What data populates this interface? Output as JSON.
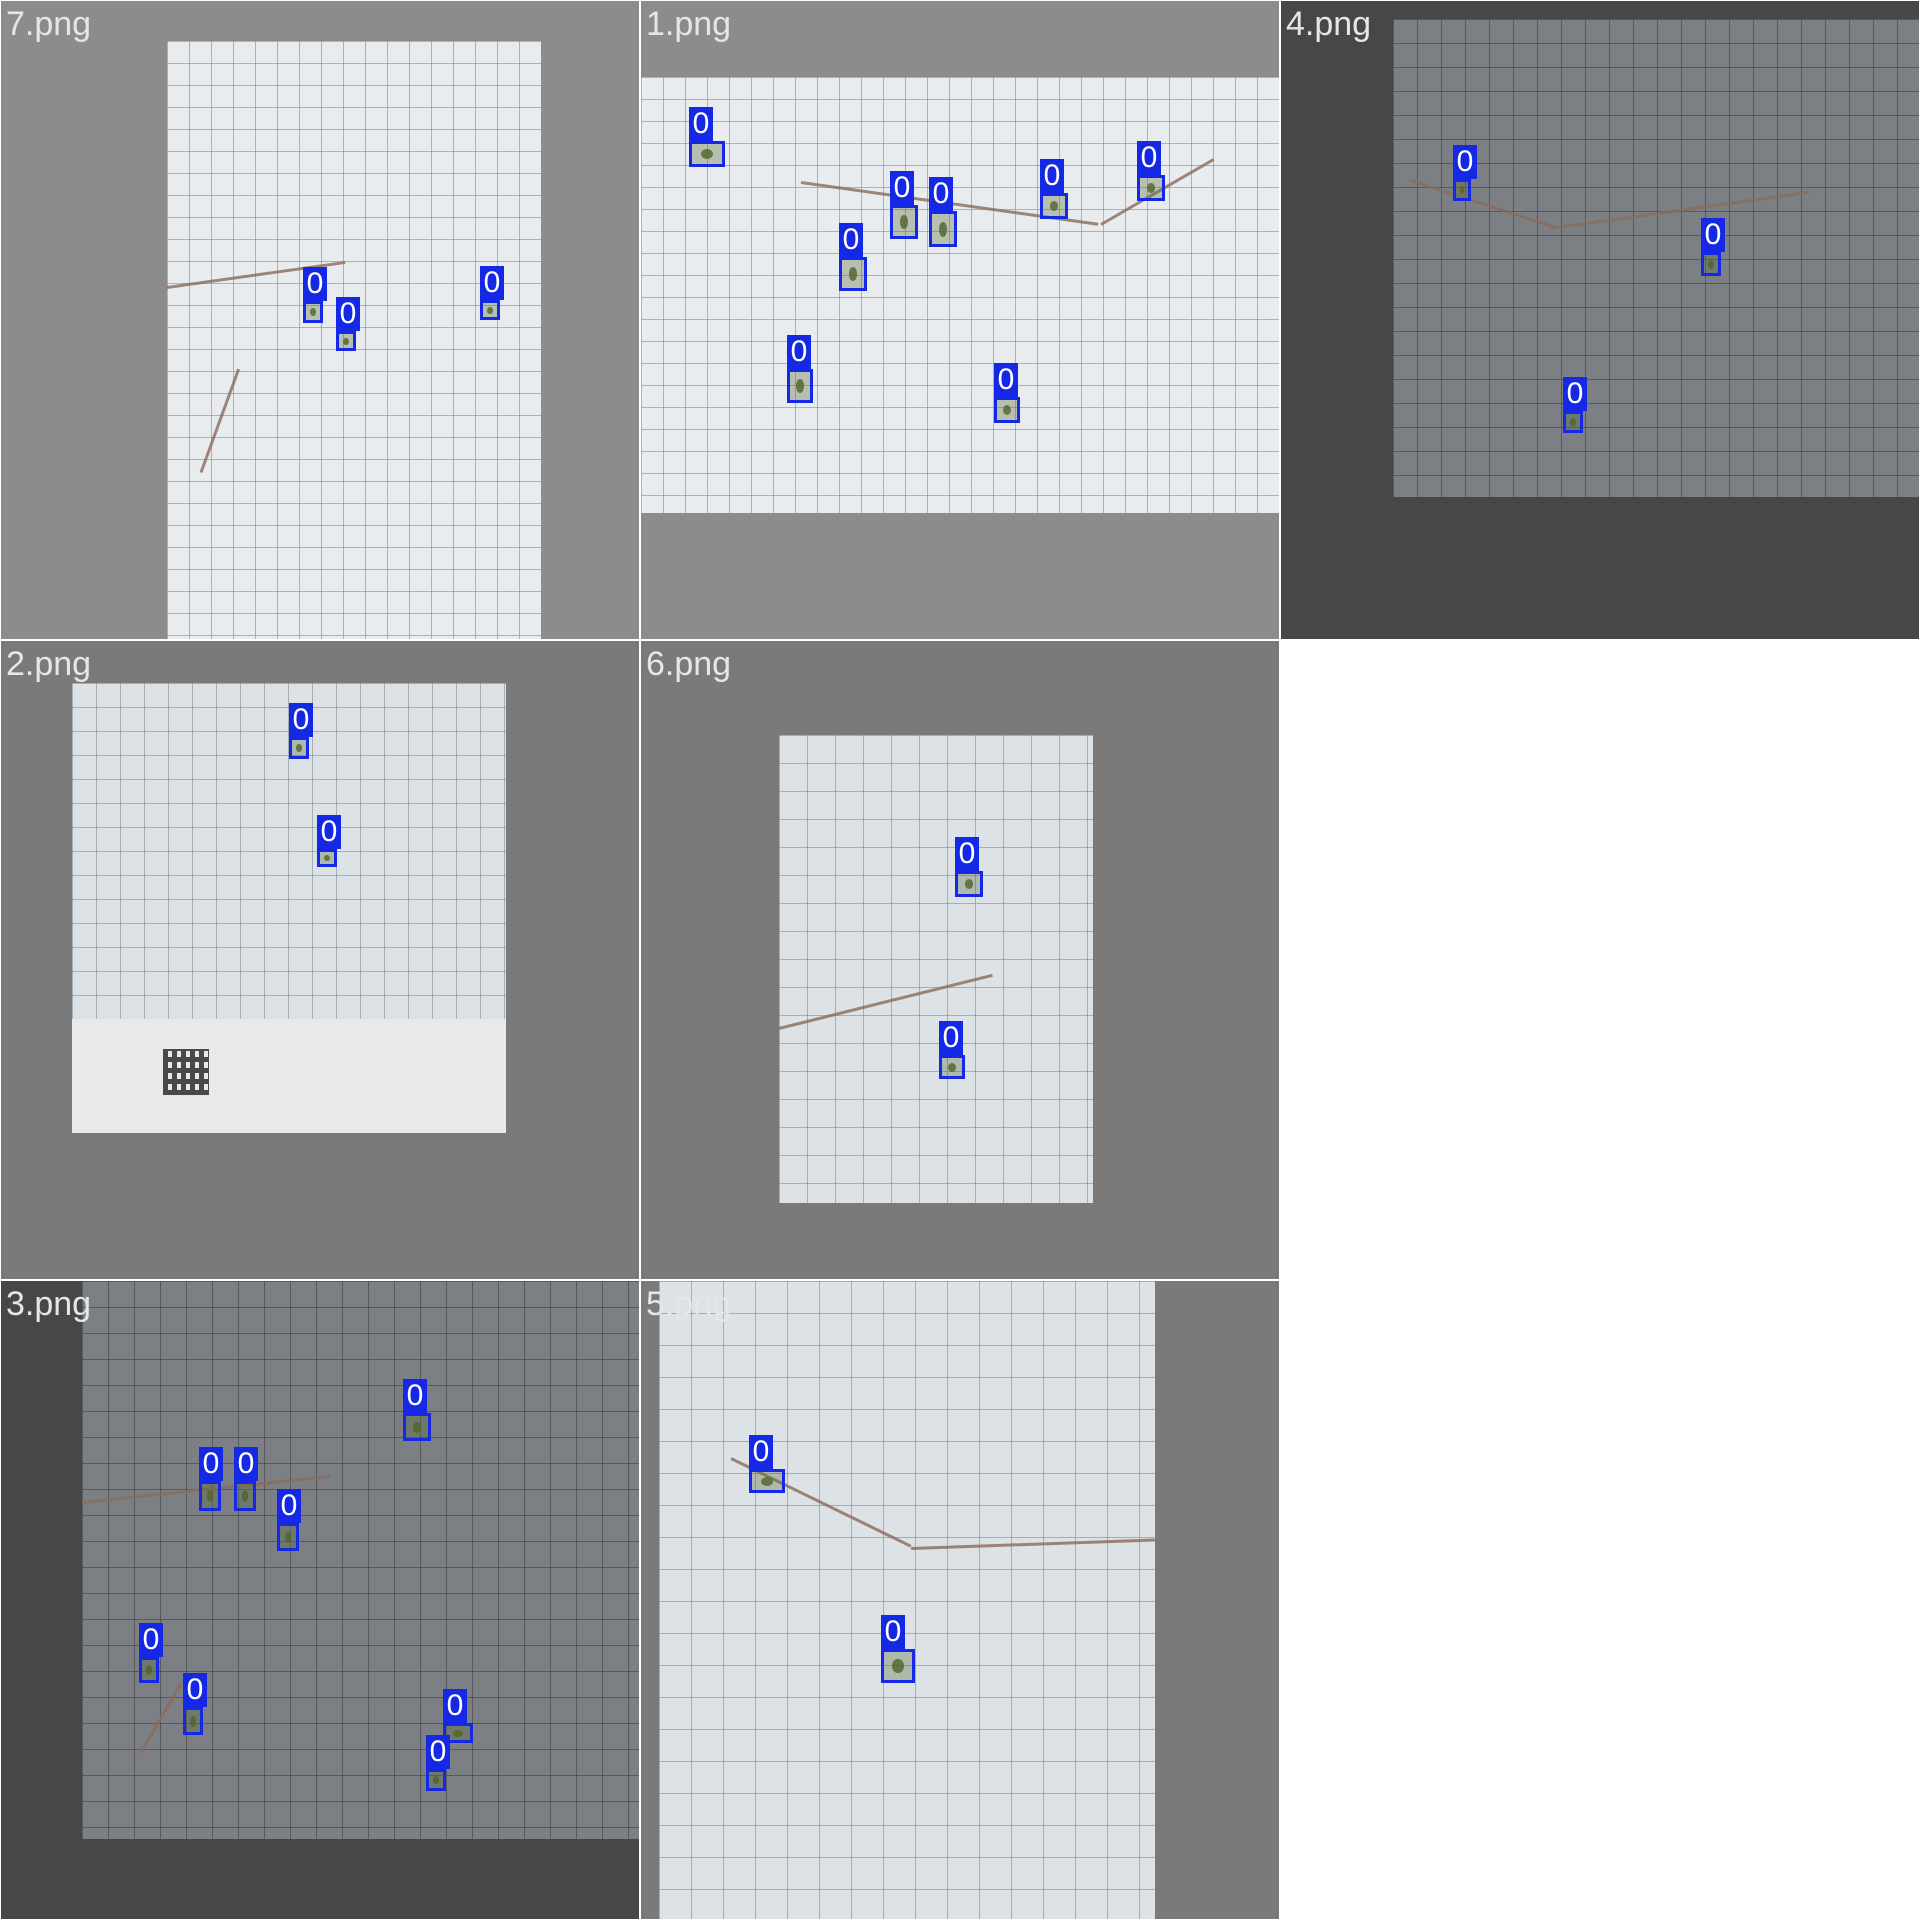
{
  "colors": {
    "box": "#1428e6",
    "label_text": "#ffffff",
    "tile_label": "#e6e6e6"
  },
  "tiles": [
    {
      "label": "7.png",
      "detections": [
        "0",
        "0",
        "0"
      ]
    },
    {
      "label": "1.png",
      "detections": [
        "0",
        "0",
        "0",
        "0",
        "0",
        "0",
        "0",
        "0"
      ]
    },
    {
      "label": "4.png",
      "detections": [
        "0",
        "0",
        "0"
      ]
    },
    {
      "label": "2.png",
      "detections": [
        "0",
        "0"
      ]
    },
    {
      "label": "6.png",
      "detections": [
        "0",
        "0"
      ]
    },
    {
      "label": "3.png",
      "detections": [
        "0",
        "0",
        "0",
        "0",
        "0",
        "0",
        "0",
        "0"
      ]
    },
    {
      "label": "5.png",
      "detections": [
        "0",
        "0"
      ]
    }
  ]
}
